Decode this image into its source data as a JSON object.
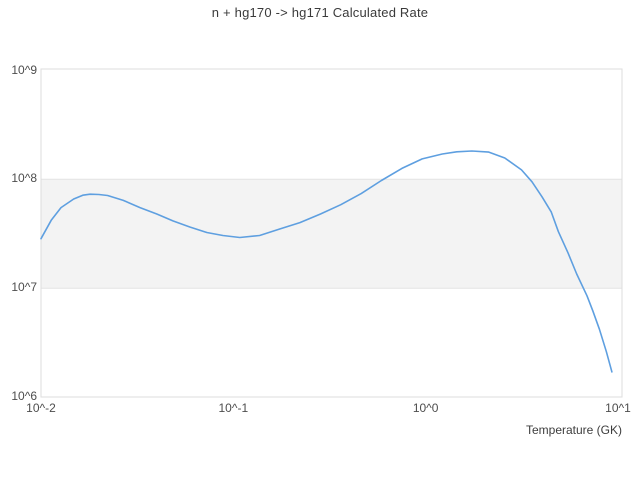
{
  "title": "n + hg170 -> hg171 Calculated Rate",
  "chart_data": {
    "type": "line",
    "title": "n + hg170 -> hg171 Calculated Rate",
    "xlabel": "Temperature (GK)",
    "ylabel": "",
    "x_scale": "log",
    "y_scale": "log",
    "xlim": [
      0.01,
      10.5
    ],
    "ylim": [
      1000000,
      1000000000
    ],
    "grid": false,
    "legend_position": "none",
    "frame_color": "#dddddd",
    "band": {
      "name": "reference-band-1e7-to-1e8",
      "from": 10000000,
      "to": 100000000,
      "fill_color": "#f3f3f3",
      "edge_color": "#e3e3e3"
    },
    "x_ticks": [
      {
        "label": "10^-2",
        "value": 0.01
      },
      {
        "label": "10^-1",
        "value": 0.1
      },
      {
        "label": "10^0",
        "value": 1
      },
      {
        "label": "10^1",
        "value": 10
      }
    ],
    "y_ticks": [
      {
        "label": "10^6",
        "value": 1000000
      },
      {
        "label": "10^7",
        "value": 10000000
      },
      {
        "label": "10^8",
        "value": 100000000
      },
      {
        "label": "10^9",
        "value": 1000000000
      }
    ],
    "series": [
      {
        "name": "calculated-rate",
        "color": "#5e9fe0",
        "line_width": 1.6,
        "points": [
          [
            0.01,
            28500000
          ],
          [
            0.0113,
            42000000
          ],
          [
            0.0127,
            55000000
          ],
          [
            0.0148,
            66000000
          ],
          [
            0.0165,
            71500000
          ],
          [
            0.018,
            73000000
          ],
          [
            0.02,
            72500000
          ],
          [
            0.0222,
            71000000
          ],
          [
            0.0268,
            64000000
          ],
          [
            0.0327,
            55000000
          ],
          [
            0.04,
            48000000
          ],
          [
            0.0485,
            41500000
          ],
          [
            0.0594,
            36500000
          ],
          [
            0.0728,
            32500000
          ],
          [
            0.0883,
            30500000
          ],
          [
            0.108,
            29200000
          ],
          [
            0.137,
            30500000
          ],
          [
            0.175,
            35000000
          ],
          [
            0.222,
            40000000
          ],
          [
            0.284,
            48000000
          ],
          [
            0.362,
            58500000
          ],
          [
            0.462,
            74000000
          ],
          [
            0.589,
            97500000
          ],
          [
            0.752,
            126000000
          ],
          [
            0.959,
            154000000
          ],
          [
            1.22,
            171000000
          ],
          [
            1.45,
            179000000
          ],
          [
            1.74,
            182000000
          ],
          [
            2.13,
            178000000
          ],
          [
            2.58,
            157000000
          ],
          [
            3.15,
            122000000
          ],
          [
            3.57,
            95000000
          ],
          [
            4.03,
            69000000
          ],
          [
            4.5,
            50000000
          ],
          [
            4.9,
            33000000
          ],
          [
            5.5,
            21000000
          ],
          [
            6.1,
            13500000
          ],
          [
            6.9,
            8500000
          ],
          [
            7.4,
            6200000
          ],
          [
            8.0,
            4200000
          ],
          [
            8.7,
            2600000
          ],
          [
            9.3,
            1700000
          ]
        ]
      }
    ]
  }
}
